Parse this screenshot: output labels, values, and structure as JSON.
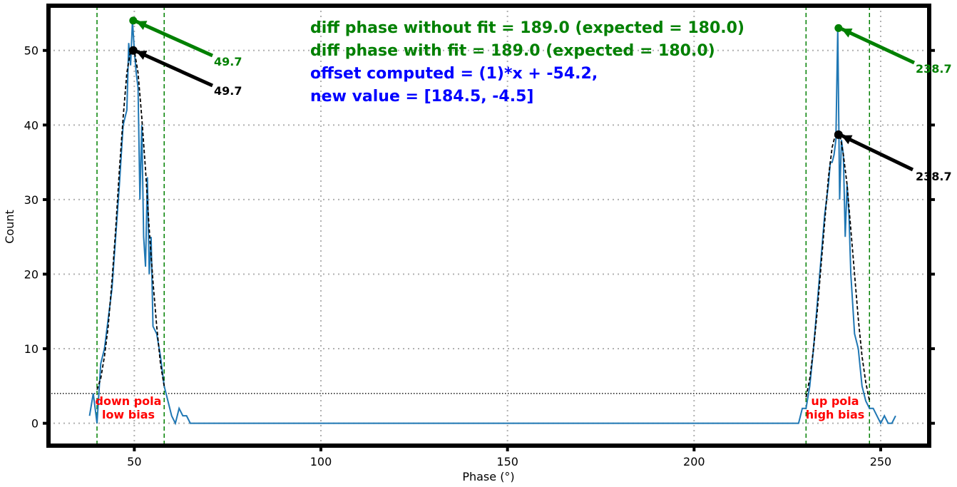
{
  "chart_data": {
    "type": "line",
    "xlabel": "Phase (°)",
    "ylabel": "Count",
    "xlim": [
      27,
      263
    ],
    "ylim": [
      -3,
      56
    ],
    "xticks": [
      50,
      100,
      150,
      200,
      250
    ],
    "yticks": [
      0,
      10,
      20,
      30,
      40,
      50
    ],
    "grid": true,
    "colors": {
      "histogram": "#1f77b4",
      "fit": "#000000",
      "peak_max": "#008000",
      "peak_fit": "#000000",
      "bounds": "#008000",
      "text_green": "#008000",
      "text_blue": "#0000ff",
      "text_red": "#ff0000"
    },
    "series": [
      {
        "style": "histogram",
        "x": [
          38,
          39,
          40,
          41,
          42,
          43,
          44,
          45,
          46,
          47,
          48,
          48.5,
          49,
          49.5,
          50,
          50.5,
          51,
          51.5,
          52,
          52.5,
          53,
          53.5,
          54,
          54.5,
          55,
          56,
          57,
          58,
          59,
          60,
          61,
          62,
          63,
          64,
          65,
          100,
          150,
          200,
          228,
          229,
          230,
          231,
          232,
          233,
          234,
          235,
          236,
          236.5,
          237,
          237.5,
          238,
          238.5,
          239,
          239.5,
          240,
          240.5,
          241,
          241.5,
          242,
          243,
          244,
          245,
          246,
          247,
          248,
          249,
          250,
          251,
          252,
          253,
          254
        ],
        "y": [
          1,
          4,
          0,
          8,
          10,
          14,
          18,
          25,
          32,
          40,
          42,
          51,
          48,
          54,
          50,
          47,
          45,
          30,
          40,
          25,
          21,
          33,
          20,
          25,
          13,
          12,
          9,
          5,
          3,
          1,
          0,
          2,
          1,
          1,
          0,
          0,
          0,
          0,
          0,
          2,
          2,
          5,
          10,
          16,
          22,
          28,
          32,
          35,
          35,
          36,
          38,
          53,
          30,
          38,
          36,
          25,
          32,
          28,
          20,
          12,
          10,
          5,
          3,
          2,
          2,
          1,
          0,
          1,
          0,
          0,
          1
        ]
      },
      {
        "style": "fit",
        "x": [
          40,
          41,
          42,
          43,
          44,
          45,
          46,
          47,
          48,
          49,
          50,
          51,
          52,
          53,
          54,
          55,
          56,
          57,
          58,
          230,
          231,
          232,
          233,
          234,
          235,
          236,
          237,
          238,
          239,
          240,
          241,
          242,
          243,
          244,
          245,
          246,
          247
        ],
        "y": [
          4.5,
          6,
          9,
          13,
          19,
          26,
          34,
          41,
          47,
          50,
          50,
          47,
          41,
          34,
          26,
          19,
          13,
          8,
          5,
          3.5,
          6,
          10,
          15,
          21,
          27,
          33,
          37,
          39,
          39,
          36,
          32,
          26,
          20,
          14,
          9,
          5.5,
          3
        ]
      }
    ],
    "horizontal_line": {
      "y": 4,
      "style": "dotted"
    },
    "vertical_lines": [
      40,
      58,
      230,
      247
    ],
    "peaks": [
      {
        "x": 49.7,
        "y_max": 54,
        "y_fit": 50,
        "label_max": "49.7",
        "label_fit": "49.7"
      },
      {
        "x": 238.7,
        "y_max": 53,
        "y_fit": 38.7,
        "label_max": "238.7",
        "label_fit": "238.7"
      }
    ],
    "annotations": {
      "line1": "diff phase without fit = 189.0 (expected = 180.0)",
      "line2": "diff phase with fit = 189.0 (expected = 180.0)",
      "line3": "offset computed = (1)*x + -54.2,",
      "line4": "new value = [184.5, -4.5]"
    },
    "regions": [
      {
        "line1": "down pola",
        "line2": "low bias"
      },
      {
        "line1": "up pola",
        "line2": "high bias"
      }
    ]
  }
}
